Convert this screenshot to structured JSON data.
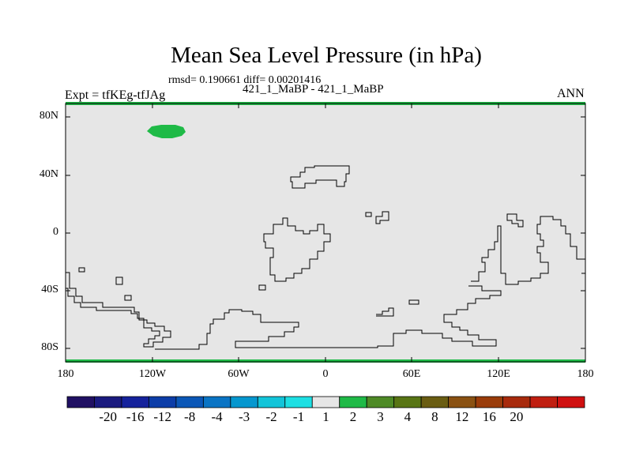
{
  "title": "Mean Sea Level Pressure (in hPa)",
  "stats": "rmsd= 0.190661 diff= 0.00201416",
  "experiment_label": "Expt = tfKEg-tfJAg",
  "case_label": "421_1_MaBP - 421_1_MaBP",
  "season_label": "ANN",
  "lat_labels": [
    "80N",
    "40N",
    "0",
    "40S",
    "80S"
  ],
  "lon_labels": [
    "180",
    "120W",
    "60W",
    "0",
    "60E",
    "120E",
    "180"
  ],
  "colors": {
    "background_field": "#e6e6e6",
    "positive_anomaly": "#1fba47",
    "coastline": "#000000"
  },
  "legend": {
    "colors": [
      "#201063",
      "#1a1a7f",
      "#15229c",
      "#0c3da8",
      "#0b57b7",
      "#0a74c4",
      "#0597cf",
      "#12c4d9",
      "#1ddfe3",
      "#e6e6e6",
      "#1fba47",
      "#4e8a26",
      "#587514",
      "#6a5d12",
      "#8a5112",
      "#9a3c0a",
      "#a82a0c",
      "#c01e10",
      "#d01010"
    ],
    "labels": [
      "-20",
      "-16",
      "-12",
      "-8",
      "-4",
      "-3",
      "-2",
      "-1",
      "1",
      "2",
      "3",
      "4",
      "8",
      "12",
      "16",
      "20"
    ]
  }
}
